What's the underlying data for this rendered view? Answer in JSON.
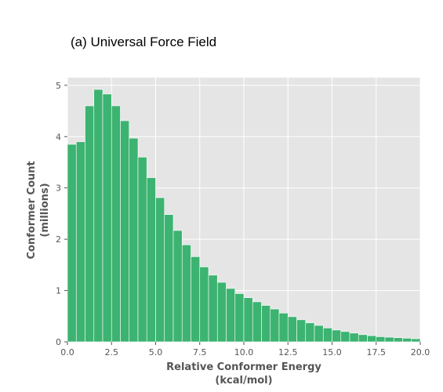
{
  "chart_data": {
    "type": "bar",
    "title": "(a) Universal Force Field",
    "xlabel_lines": [
      "Relative Conformer Energy",
      "(kcal/mol)"
    ],
    "ylabel_lines": [
      "Conformer Count",
      "(millions)"
    ],
    "xlim": [
      0,
      20
    ],
    "ylim": [
      0,
      5.15
    ],
    "xticks": [
      "0.0",
      "2.5",
      "5.0",
      "7.5",
      "10.0",
      "12.5",
      "15.0",
      "17.5",
      "20.0"
    ],
    "yticks": [
      "0",
      "1",
      "2",
      "3",
      "4",
      "5"
    ],
    "bin_width": 0.5,
    "bin_starts": [
      0,
      0.5,
      1,
      1.5,
      2,
      2.5,
      3,
      3.5,
      4,
      4.5,
      5,
      5.5,
      6,
      6.5,
      7,
      7.5,
      8,
      8.5,
      9,
      9.5,
      10,
      10.5,
      11,
      11.5,
      12,
      12.5,
      13,
      13.5,
      14,
      14.5,
      15,
      15.5,
      16,
      16.5,
      17,
      17.5,
      18,
      18.5,
      19,
      19.5
    ],
    "values": [
      3.85,
      3.9,
      4.6,
      4.92,
      4.83,
      4.6,
      4.31,
      3.97,
      3.6,
      3.2,
      2.81,
      2.48,
      2.17,
      1.89,
      1.66,
      1.46,
      1.3,
      1.16,
      1.04,
      0.94,
      0.86,
      0.78,
      0.71,
      0.64,
      0.56,
      0.49,
      0.43,
      0.37,
      0.32,
      0.27,
      0.23,
      0.2,
      0.17,
      0.14,
      0.12,
      0.1,
      0.09,
      0.08,
      0.07,
      0.06
    ],
    "grid": true,
    "colors": {
      "bar": "#3cb371",
      "background": "#e5e5e5",
      "grid": "#ffffff",
      "text": "#555555"
    }
  }
}
